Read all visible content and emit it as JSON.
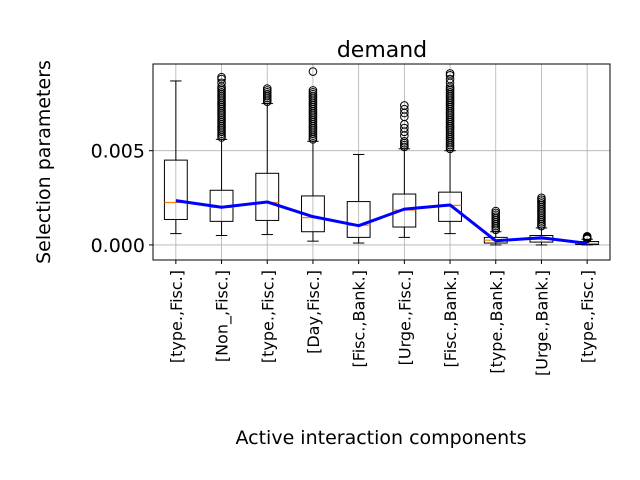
{
  "chart_data": {
    "type": "box",
    "title": "demand",
    "xlabel": "Active interaction components",
    "ylabel": "Selection parameters",
    "ylim": [
      -0.0008,
      0.0096
    ],
    "yticks": [
      0.0,
      0.005
    ],
    "ytick_labels": [
      "0.000",
      "0.005"
    ],
    "grid": true,
    "categories": [
      "[type.,Fisc.]",
      "[Non_,Fisc.]",
      "[type.,Fisc.]",
      "[Day,Fisc.]",
      "[Fisc.,Bank.]",
      "[Urge.,Fisc.]",
      "[Fisc.,Bank.]",
      "[type.,Bank.]",
      "[Urge.,Bank.]",
      "[type.,Fisc.]"
    ],
    "boxes": [
      {
        "whislo": 0.0006,
        "q1": 0.00135,
        "med": 0.00225,
        "q3": 0.0045,
        "whishi": 0.0087,
        "fliers": []
      },
      {
        "whislo": 0.0005,
        "q1": 0.00125,
        "med": 0.002,
        "q3": 0.0029,
        "whishi": 0.0056,
        "fliers": [
          0.0057,
          0.0058,
          0.0059,
          0.006,
          0.0061,
          0.0062,
          0.0063,
          0.0064,
          0.0065,
          0.0066,
          0.0067,
          0.0068,
          0.0069,
          0.007,
          0.0071,
          0.0072,
          0.0073,
          0.0074,
          0.0075,
          0.0076,
          0.0077,
          0.0078,
          0.0079,
          0.008,
          0.0081,
          0.0082,
          0.0083,
          0.0084,
          0.0086,
          0.0088,
          0.0089
        ]
      },
      {
        "whislo": 0.00055,
        "q1": 0.0013,
        "med": 0.00225,
        "q3": 0.0038,
        "whishi": 0.0075,
        "fliers": [
          0.0076,
          0.0077,
          0.0078,
          0.0079,
          0.008,
          0.0081,
          0.0082,
          0.0083
        ]
      },
      {
        "whislo": 0.0002,
        "q1": 0.0007,
        "med": 0.00145,
        "q3": 0.0026,
        "whishi": 0.0055,
        "fliers": [
          0.0056,
          0.0057,
          0.0058,
          0.0059,
          0.006,
          0.0061,
          0.0062,
          0.0063,
          0.0064,
          0.0065,
          0.0066,
          0.0067,
          0.0068,
          0.0069,
          0.007,
          0.0071,
          0.0072,
          0.0073,
          0.0074,
          0.0075,
          0.0076,
          0.0077,
          0.0078,
          0.0079,
          0.008,
          0.0081,
          0.0082,
          0.0092
        ]
      },
      {
        "whislo": 0.0001,
        "q1": 0.0004,
        "med": 0.00105,
        "q3": 0.0023,
        "whishi": 0.0048,
        "fliers": []
      },
      {
        "whislo": 0.0004,
        "q1": 0.00095,
        "med": 0.00185,
        "q3": 0.0027,
        "whishi": 0.0051,
        "fliers": [
          0.0052,
          0.0053,
          0.0054,
          0.0055,
          0.0058,
          0.006,
          0.0062,
          0.0064,
          0.0068,
          0.007,
          0.0072,
          0.0074
        ]
      },
      {
        "whislo": 0.0006,
        "q1": 0.00125,
        "med": 0.0021,
        "q3": 0.0028,
        "whishi": 0.005,
        "fliers": [
          0.0051,
          0.0052,
          0.0053,
          0.0054,
          0.0055,
          0.0056,
          0.0057,
          0.0058,
          0.0059,
          0.006,
          0.0061,
          0.0062,
          0.0063,
          0.0064,
          0.0065,
          0.0066,
          0.0067,
          0.0068,
          0.0069,
          0.007,
          0.0071,
          0.0072,
          0.0073,
          0.0074,
          0.0075,
          0.0076,
          0.0077,
          0.0078,
          0.0079,
          0.008,
          0.0081,
          0.0082,
          0.0083,
          0.0084,
          0.0086,
          0.0088,
          0.009,
          0.0091
        ]
      },
      {
        "whislo": 0.0,
        "q1": 0.0001,
        "med": 0.00025,
        "q3": 0.0004,
        "whishi": 0.0007,
        "fliers": [
          0.0008,
          0.0009,
          0.001,
          0.0011,
          0.0012,
          0.0013,
          0.0014,
          0.0015,
          0.0016,
          0.0017,
          0.0018
        ]
      },
      {
        "whislo": 0.0,
        "q1": 0.00015,
        "med": 0.0003,
        "q3": 0.0005,
        "whishi": 0.0009,
        "fliers": [
          0.001,
          0.0011,
          0.0012,
          0.0013,
          0.0014,
          0.0015,
          0.0016,
          0.0017,
          0.0018,
          0.0019,
          0.002,
          0.0021,
          0.0022,
          0.0023,
          0.0024,
          0.0025
        ]
      },
      {
        "whislo": 0.0,
        "q1": 2e-05,
        "med": 8e-05,
        "q3": 0.00018,
        "whishi": 0.0003,
        "fliers": [
          0.00032,
          0.00034,
          0.00036,
          0.00038,
          0.0004,
          0.00042,
          0.00044,
          0.00046
        ]
      }
    ],
    "mean_line": {
      "color": "#0000ff",
      "values": [
        0.00235,
        0.002,
        0.00228,
        0.0015,
        0.00102,
        0.0019,
        0.00212,
        0.00022,
        0.00038,
        8e-05
      ]
    },
    "colors": {
      "box": "#000000",
      "median": "#ff7f0e",
      "grid": "#b0b0b0"
    }
  }
}
